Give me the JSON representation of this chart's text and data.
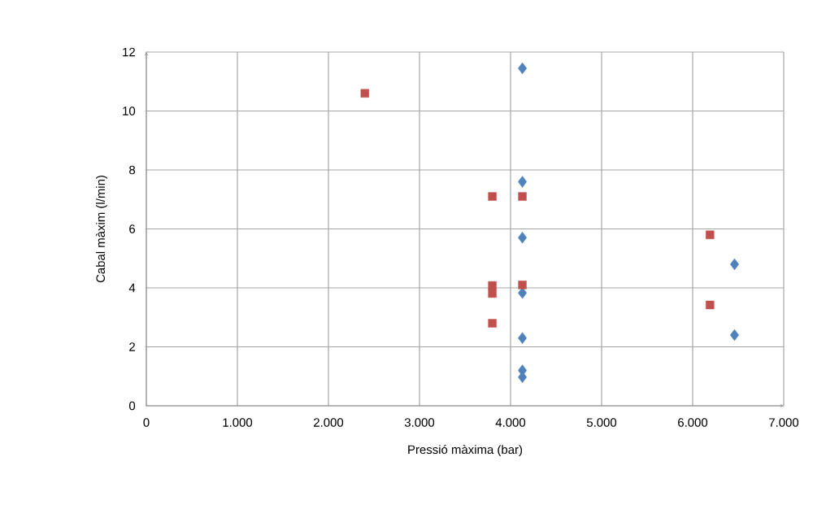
{
  "chart_data": {
    "type": "scatter",
    "xlabel": "Pressió màxima (bar)",
    "ylabel": "Cabal màxim (l/min)",
    "xlim": [
      0,
      7000
    ],
    "ylim": [
      0,
      12
    ],
    "xticks": [
      {
        "value": 0,
        "label": "0"
      },
      {
        "value": 1000,
        "label": "1.000"
      },
      {
        "value": 2000,
        "label": "2.000"
      },
      {
        "value": 3000,
        "label": "3.000"
      },
      {
        "value": 4000,
        "label": "4.000"
      },
      {
        "value": 5000,
        "label": "5.000"
      },
      {
        "value": 6000,
        "label": "6.000"
      },
      {
        "value": 7000,
        "label": "7.000"
      }
    ],
    "yticks": [
      0,
      2,
      4,
      6,
      8,
      10,
      12
    ],
    "grid": true,
    "series": [
      {
        "color": "#4f81bd",
        "marker": "diamond",
        "x": [
          4130,
          4130,
          4130,
          4130,
          4130,
          4130,
          4130,
          6460,
          6460
        ],
        "values": [
          11.45,
          7.6,
          5.7,
          3.83,
          2.3,
          1.2,
          0.97,
          4.8,
          2.4
        ]
      },
      {
        "color": "#c0504d",
        "marker": "square",
        "x": [
          2400,
          3800,
          4130,
          6190,
          3800,
          3800,
          4130,
          6190,
          3800
        ],
        "values": [
          10.6,
          7.1,
          7.1,
          5.8,
          4.08,
          3.81,
          4.1,
          3.42,
          2.8
        ]
      }
    ]
  }
}
